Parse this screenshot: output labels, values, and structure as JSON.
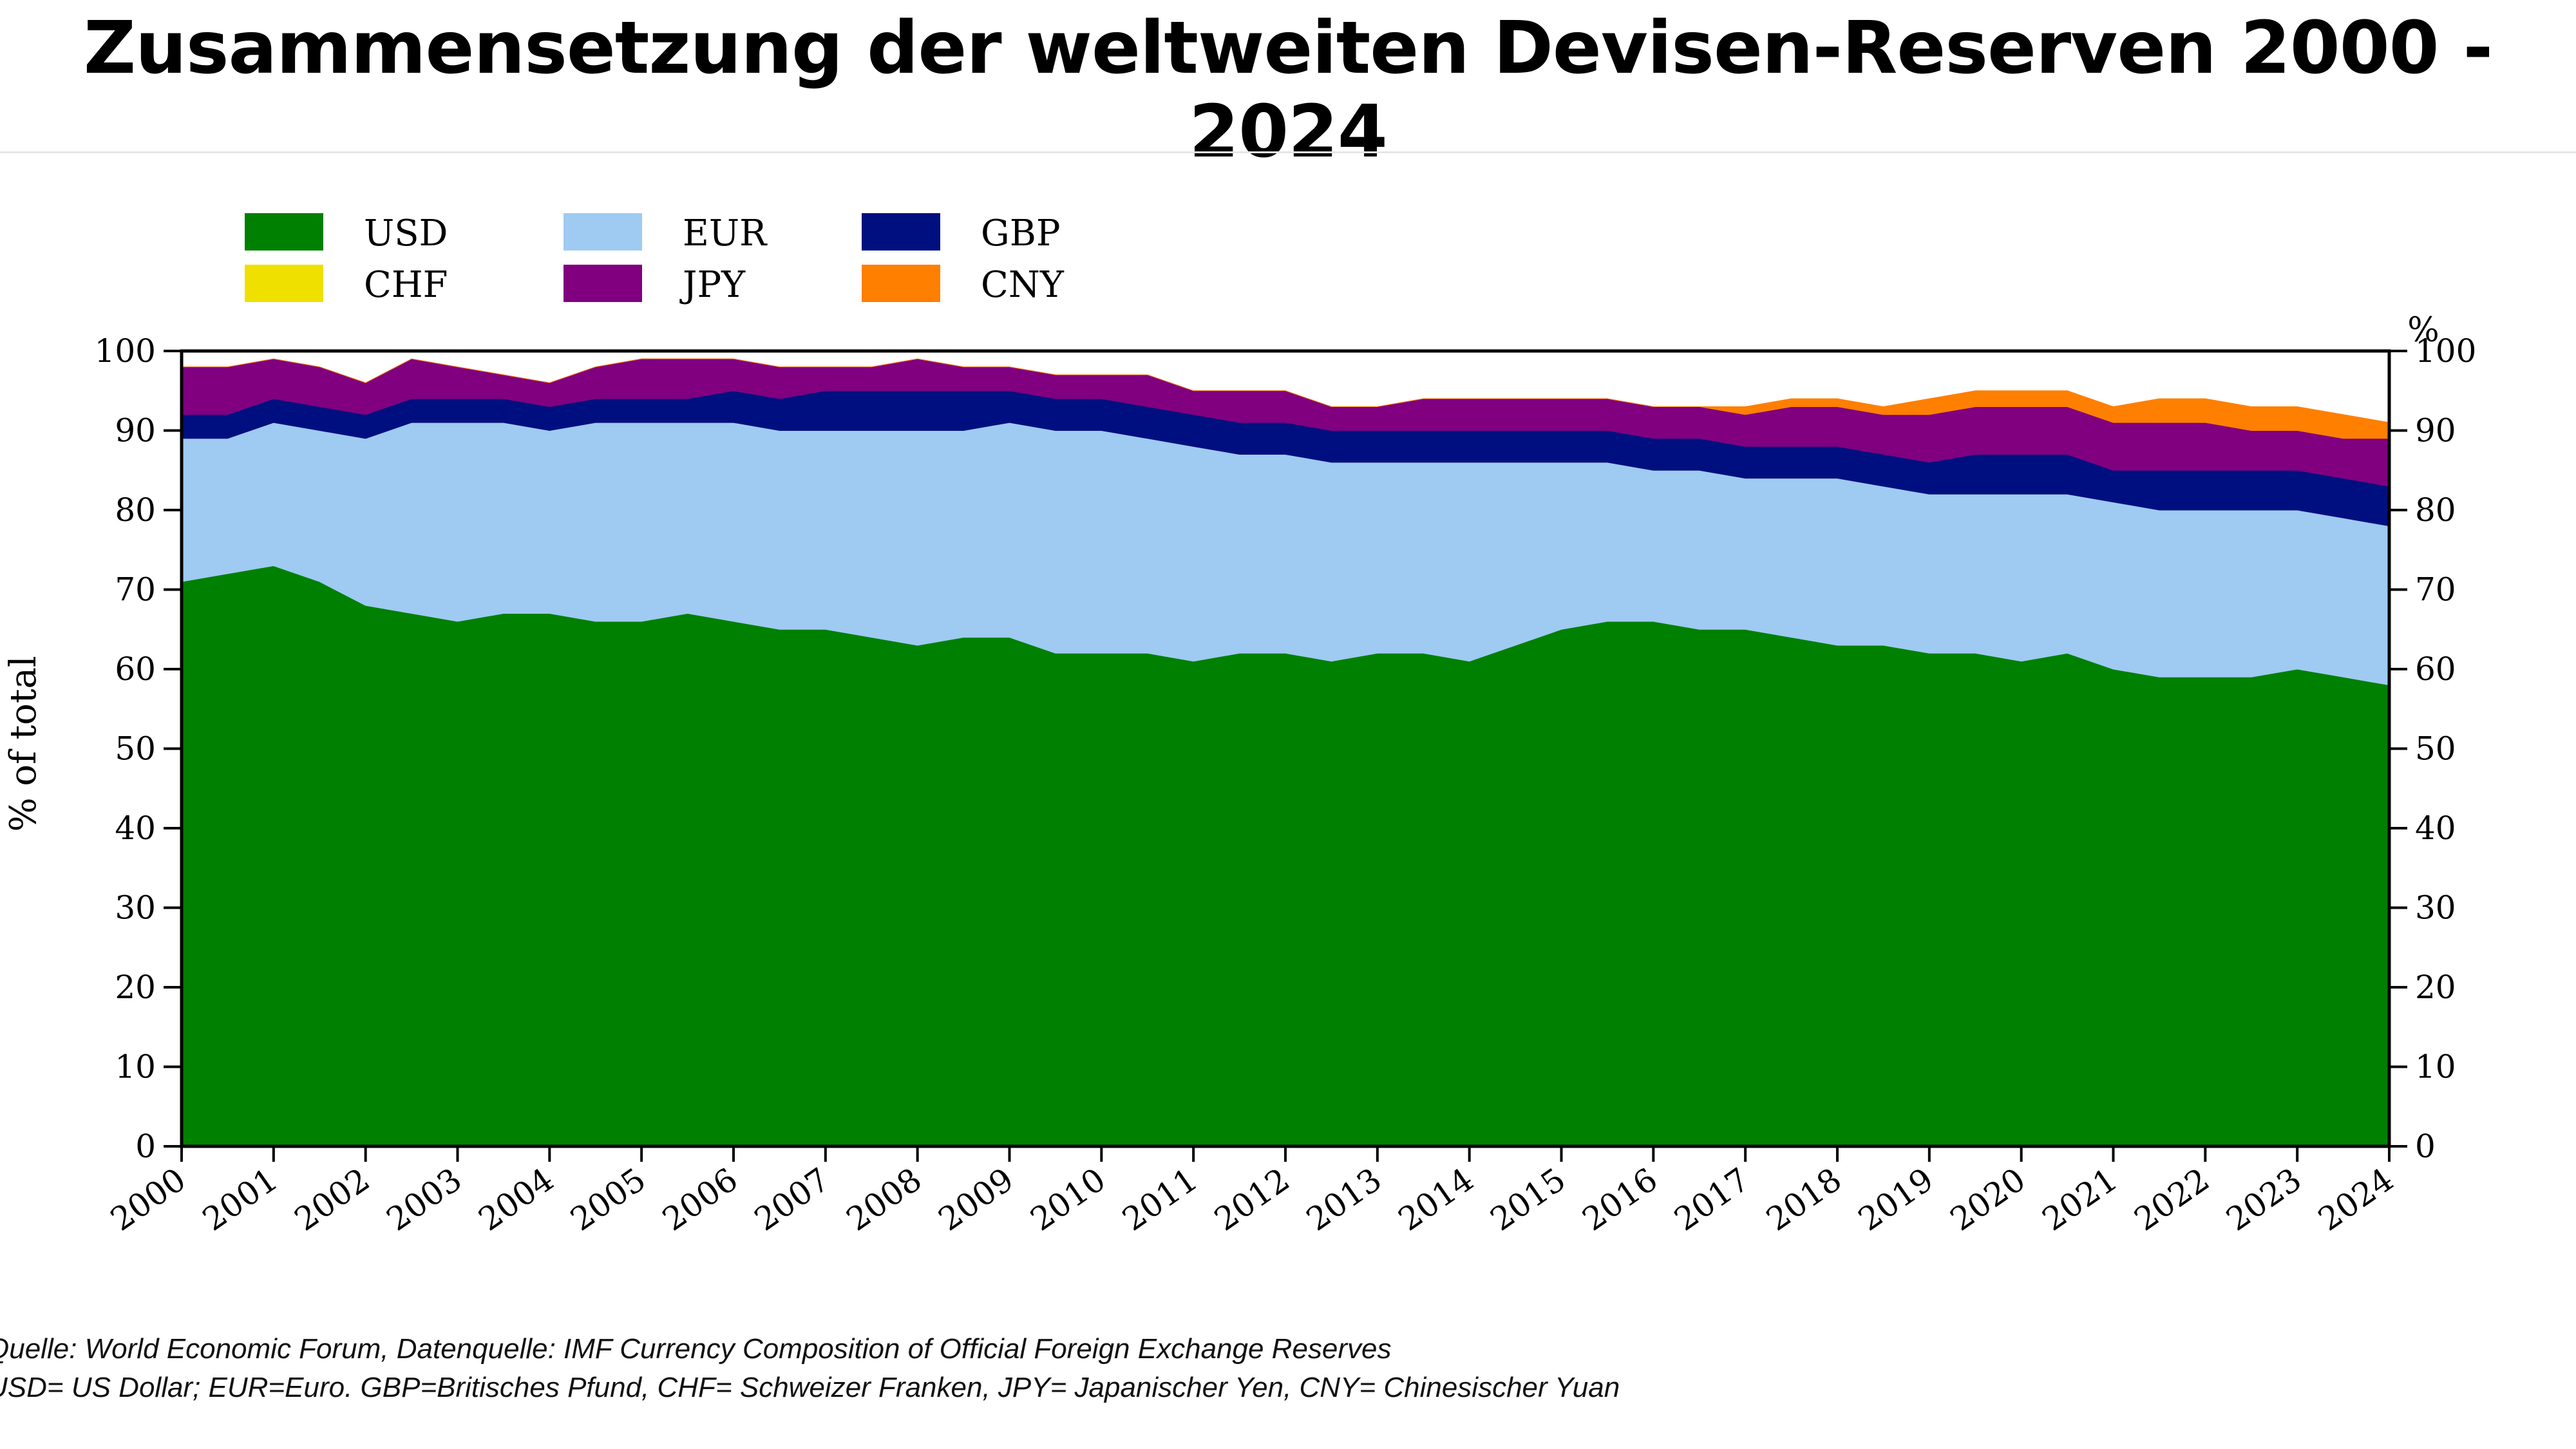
{
  "title": "Zusammensetzung der weltweiten Devisen-Reserven 2000 - 2024",
  "source": {
    "line1": "Quelle: World Economic Forum, Datenquelle: IMF Currency Composition of Official Foreign Exchange Reserves",
    "line2": "USD= US Dollar; EUR=Euro. GBP=Britisches Pfund, CHF= Schweizer Franken, JPY= Japanischer Yen, CNY= Chinesischer Yuan"
  },
  "chart_data": {
    "type": "area",
    "stacked": true,
    "title": "",
    "ylabel": "% of total",
    "ylabel_right": "%",
    "ylim": [
      0,
      100
    ],
    "yticks": [
      0,
      10,
      20,
      30,
      40,
      50,
      60,
      70,
      80,
      90,
      100
    ],
    "xlim": [
      2000,
      2024
    ],
    "xticks": [
      "2000",
      "2001",
      "2002",
      "2003",
      "2004",
      "2005",
      "2006",
      "2007",
      "2008",
      "2009",
      "2010",
      "2011",
      "2012",
      "2013",
      "2014",
      "2015",
      "2016",
      "2017",
      "2018",
      "2019",
      "2020",
      "2021",
      "2022",
      "2023",
      "2024"
    ],
    "legend_position": "top-left",
    "x": [
      2000,
      2000.5,
      2001,
      2001.5,
      2002,
      2002.5,
      2003,
      2003.5,
      2004,
      2004.5,
      2005,
      2005.5,
      2006,
      2006.5,
      2007,
      2007.5,
      2008,
      2008.5,
      2009,
      2009.5,
      2010,
      2010.5,
      2011,
      2011.5,
      2012,
      2012.5,
      2013,
      2013.5,
      2014,
      2014.5,
      2015,
      2015.5,
      2016,
      2016.5,
      2017,
      2017.5,
      2018,
      2018.5,
      2019,
      2019.5,
      2020,
      2020.5,
      2021,
      2021.5,
      2022,
      2022.5,
      2023,
      2023.5,
      2024
    ],
    "series": [
      {
        "name": "USD",
        "color": "#008000",
        "values": [
          71,
          72,
          73,
          71,
          68,
          67,
          66,
          67,
          67,
          66,
          66,
          67,
          66,
          65,
          65,
          64,
          63,
          64,
          64,
          62,
          62,
          62,
          61,
          62,
          62,
          61,
          62,
          62,
          61,
          63,
          65,
          66,
          66,
          65,
          65,
          64,
          63,
          63,
          62,
          62,
          61,
          62,
          60,
          59,
          59,
          59,
          60,
          59,
          58
        ]
      },
      {
        "name": "EUR",
        "color": "#9fcaf2",
        "values": [
          18,
          17,
          18,
          19,
          21,
          24,
          25,
          24,
          23,
          25,
          25,
          24,
          25,
          25,
          25,
          26,
          27,
          26,
          27,
          28,
          28,
          27,
          27,
          25,
          25,
          25,
          24,
          24,
          25,
          23,
          21,
          20,
          19,
          20,
          19,
          20,
          21,
          20,
          20,
          20,
          21,
          20,
          21,
          21,
          21,
          21,
          20,
          20,
          20
        ]
      },
      {
        "name": "GBP",
        "color": "#000f7f",
        "values": [
          3,
          3,
          3,
          3,
          3,
          3,
          3,
          3,
          3,
          3,
          3,
          3,
          4,
          4,
          5,
          5,
          5,
          5,
          4,
          4,
          4,
          4,
          4,
          4,
          4,
          4,
          4,
          4,
          4,
          4,
          4,
          4,
          4,
          4,
          4,
          4,
          4,
          4,
          4,
          5,
          5,
          5,
          4,
          5,
          5,
          5,
          5,
          5,
          5
        ]
      },
      {
        "name": "CHF",
        "color": "#f0e000",
        "values": [
          0,
          0,
          0,
          0,
          0,
          0,
          0,
          0,
          0,
          0,
          0,
          0,
          0,
          0,
          0,
          0,
          0,
          0,
          0,
          0,
          0,
          0,
          0,
          0,
          0,
          0,
          0,
          0,
          0,
          0,
          0,
          0,
          0,
          0,
          0,
          0,
          0,
          0,
          0,
          0,
          0,
          0,
          0,
          0,
          0,
          0,
          0,
          0,
          0
        ]
      },
      {
        "name": "JPY",
        "color": "#800080",
        "values": [
          6,
          6,
          5,
          5,
          4,
          5,
          4,
          3,
          3,
          4,
          5,
          5,
          4,
          4,
          3,
          3,
          4,
          3,
          3,
          3,
          3,
          4,
          3,
          4,
          4,
          3,
          3,
          4,
          4,
          4,
          4,
          4,
          4,
          4,
          4,
          5,
          5,
          5,
          6,
          6,
          6,
          6,
          6,
          6,
          6,
          5,
          5,
          5,
          6
        ]
      },
      {
        "name": "CNY",
        "color": "#ff7f00",
        "values": [
          0,
          0,
          0,
          0,
          0,
          0,
          0,
          0,
          0,
          0,
          0,
          0,
          0,
          0,
          0,
          0,
          0,
          0,
          0,
          0,
          0,
          0,
          0,
          0,
          0,
          0,
          0,
          0,
          0,
          0,
          0,
          0,
          0,
          0,
          1,
          1,
          1,
          1,
          2,
          2,
          2,
          2,
          2,
          3,
          3,
          3,
          3,
          3,
          2
        ]
      }
    ]
  }
}
